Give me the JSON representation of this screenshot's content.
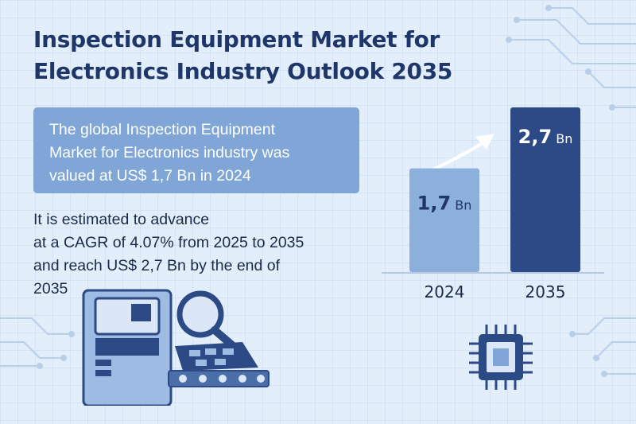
{
  "title": {
    "line1": "Inspection Equipment Market for",
    "line2": "Electronics Industry Outlook 2035"
  },
  "valued_box": {
    "line1": "The global Inspection Equipment",
    "line2": "Market for Electronics industry was",
    "line3": "valued at US$ 1,7 Bn in 2024"
  },
  "estimate": {
    "line1": "It is estimated to advance",
    "line2": "at a CAGR of 4.07% from 2025 to 2035",
    "line3": "and reach US$ 2,7 Bn by the end of",
    "line4": "2035"
  },
  "colors": {
    "background": "#e3eefb",
    "title": "#1f3669",
    "box": "#7fa6d6",
    "bar_2024": "#8cb0db",
    "bar_2035": "#2b4a86"
  },
  "icons": [
    "circuit-lines-icon",
    "arrow-up-icon",
    "microchip-icon",
    "inspection-machine-icon",
    "magnifying-glass-icon",
    "circuit-board-icon"
  ],
  "chart_data": {
    "type": "bar",
    "categories": [
      "2024",
      "2035"
    ],
    "values": [
      1.7,
      2.7
    ],
    "value_labels": [
      "1,7",
      "2,7"
    ],
    "unit": "Bn",
    "title": "",
    "xlabel": "",
    "ylabel": "",
    "ylim": [
      0,
      2.7
    ],
    "grid": false
  }
}
